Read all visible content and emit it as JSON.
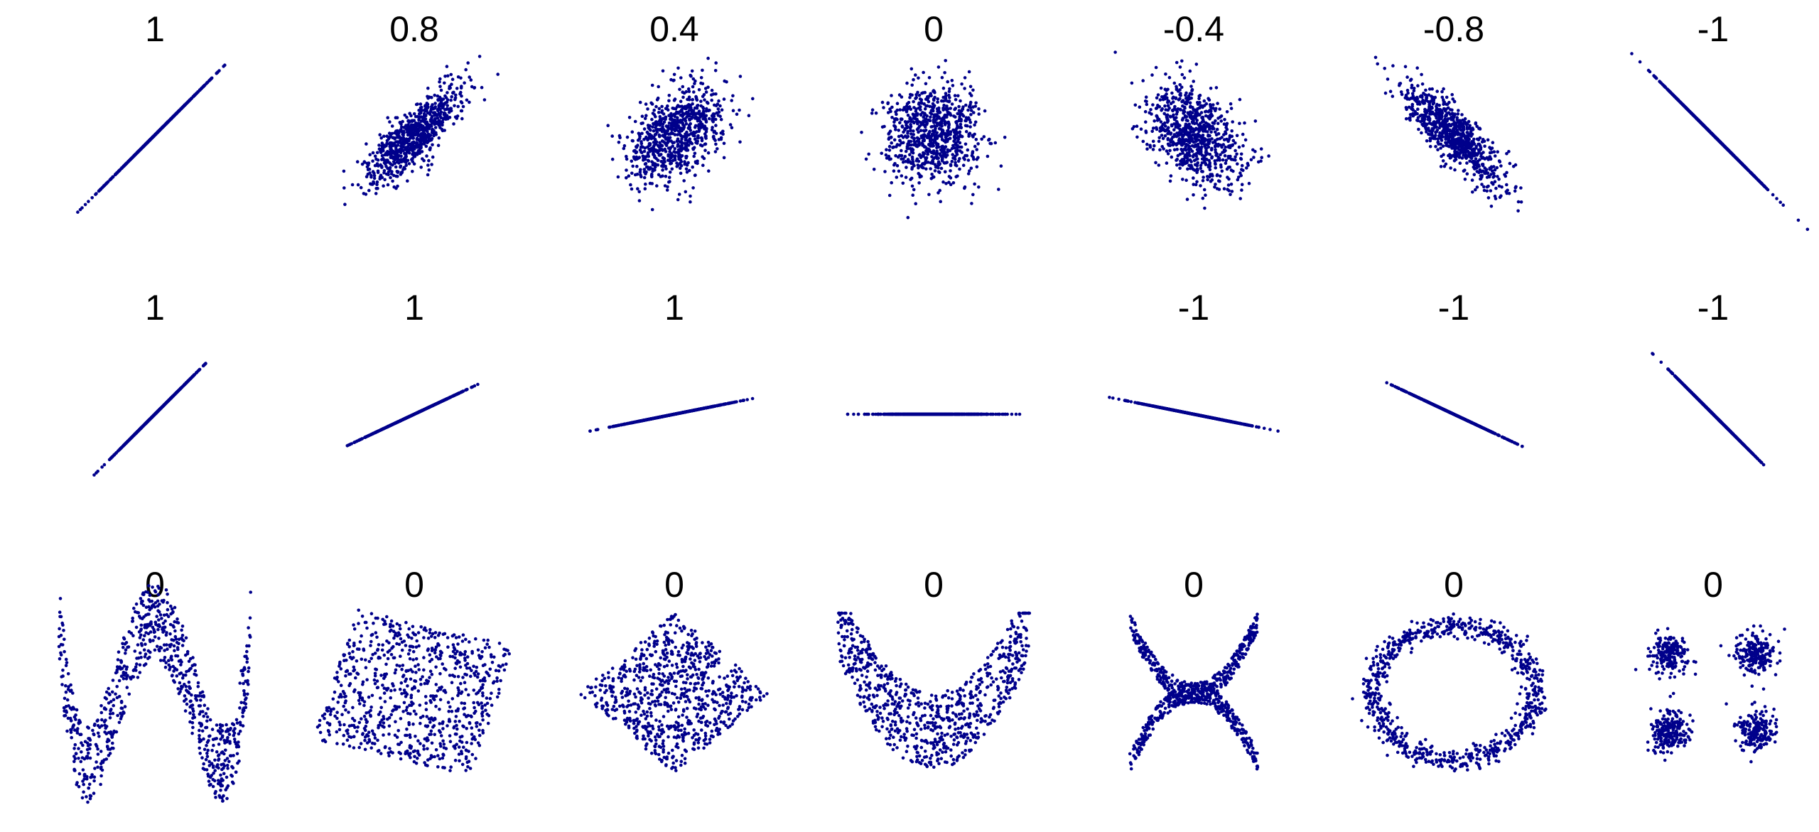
{
  "chart_data": {
    "type": "scatter",
    "grid": false,
    "point_color": "#00008b",
    "rows": [
      {
        "panels": [
          {
            "title": "1",
            "pattern": "bivariate normal",
            "correlation": 1
          },
          {
            "title": "0.8",
            "pattern": "bivariate normal",
            "correlation": 0.8
          },
          {
            "title": "0.4",
            "pattern": "bivariate normal",
            "correlation": 0.4
          },
          {
            "title": "0",
            "pattern": "bivariate normal",
            "correlation": 0
          },
          {
            "title": "-0.4",
            "pattern": "bivariate normal",
            "correlation": -0.4
          },
          {
            "title": "-0.8",
            "pattern": "bivariate normal",
            "correlation": -0.8
          },
          {
            "title": "-1",
            "pattern": "bivariate normal",
            "correlation": -1
          }
        ]
      },
      {
        "panels": [
          {
            "title": "1",
            "pattern": "line",
            "slope": 1
          },
          {
            "title": "1",
            "pattern": "line",
            "slope": 0.47
          },
          {
            "title": "1",
            "pattern": "line",
            "slope": 0.2
          },
          {
            "title": "",
            "pattern": "line",
            "slope": 0
          },
          {
            "title": "-1",
            "pattern": "line",
            "slope": -0.2
          },
          {
            "title": "-1",
            "pattern": "line",
            "slope": -0.47
          },
          {
            "title": "-1",
            "pattern": "line",
            "slope": -1
          }
        ]
      },
      {
        "panels": [
          {
            "title": "0",
            "pattern": "w-curve"
          },
          {
            "title": "0",
            "pattern": "rotated square"
          },
          {
            "title": "0",
            "pattern": "diamond"
          },
          {
            "title": "0",
            "pattern": "parabola"
          },
          {
            "title": "0",
            "pattern": "x-shape"
          },
          {
            "title": "0",
            "pattern": "ring"
          },
          {
            "title": "0",
            "pattern": "four clusters"
          }
        ]
      }
    ]
  }
}
